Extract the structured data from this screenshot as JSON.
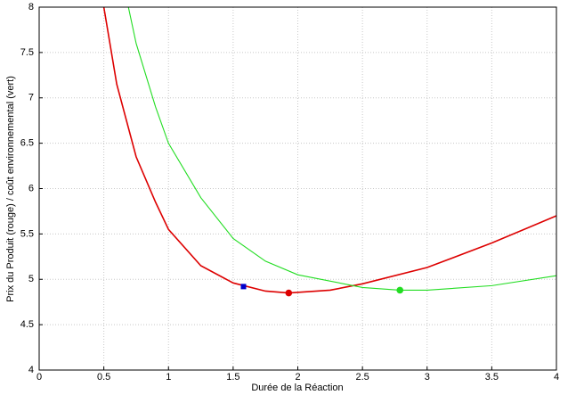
{
  "chart_data": {
    "type": "line",
    "xlabel": "Durée de la Réaction",
    "ylabel": "Prix du Produit (rouge) / coût environnemental (vert)",
    "xlim": [
      0,
      4
    ],
    "ylim": [
      4,
      8
    ],
    "xticks": [
      0,
      0.5,
      1,
      1.5,
      2,
      2.5,
      3,
      3.5,
      4
    ],
    "yticks": [
      4,
      4.5,
      5,
      5.5,
      6,
      6.5,
      7,
      7.5,
      8
    ],
    "grid": true,
    "series": [
      {
        "color": "#dd0000",
        "x": [
          0.5,
          0.6,
          0.75,
          0.9,
          1,
          1.25,
          1.5,
          1.75,
          1.93,
          2.25,
          2.5,
          3,
          3.5,
          4
        ],
        "values": [
          8,
          7.15,
          6.35,
          5.85,
          5.55,
          5.15,
          4.96,
          4.87,
          4.85,
          4.88,
          4.95,
          5.13,
          5.4,
          5.7
        ]
      },
      {
        "color": "#22dd22",
        "x": [
          0.69,
          0.75,
          0.9,
          1,
          1.25,
          1.5,
          1.75,
          2,
          2.5,
          2.79,
          3,
          3.5,
          4
        ],
        "values": [
          8,
          7.6,
          6.9,
          6.5,
          5.9,
          5.45,
          5.2,
          5.05,
          4.91,
          4.88,
          4.88,
          4.93,
          5.04
        ]
      }
    ],
    "markers": [
      {
        "x": 1.58,
        "y": 4.92,
        "color": "#0000cc",
        "shape": "square"
      },
      {
        "x": 1.93,
        "y": 4.85,
        "color": "#dd0000",
        "shape": "circle"
      },
      {
        "x": 2.79,
        "y": 4.88,
        "color": "#22dd22",
        "shape": "circle"
      }
    ]
  }
}
